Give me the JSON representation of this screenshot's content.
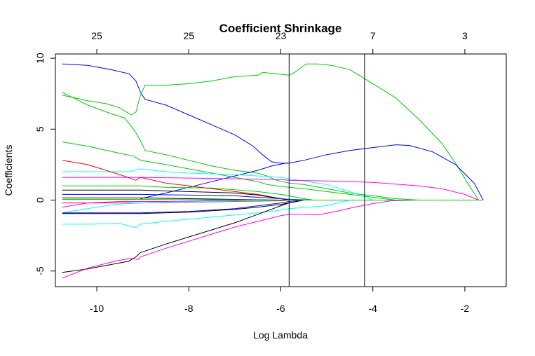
{
  "chart_data": {
    "type": "line",
    "title": "Coefficient Shrinkage",
    "xlabel": "Log Lambda",
    "ylabel": "Coefficients",
    "xlim": [
      -10.9,
      -1.1
    ],
    "ylim": [
      -6.1,
      10.3
    ],
    "xticks": [
      -10,
      -8,
      -6,
      -4,
      -2
    ],
    "xtick_labels": [
      "-10",
      "-8",
      "-6",
      "-4",
      "-2"
    ],
    "yticks": [
      -5,
      0,
      5,
      10
    ],
    "ytick_labels": [
      "-5",
      "0",
      "5",
      "10"
    ],
    "top_ticks": [
      -10,
      -8,
      -6,
      -4,
      -2
    ],
    "top_tick_labels": [
      "25",
      "25",
      "23",
      "7",
      "3"
    ],
    "vlines": [
      -5.82,
      -4.18
    ],
    "grid": false,
    "series": [
      {
        "color": "#0000ff",
        "x": [
          -10.75,
          -10.2,
          -9.7,
          -9.3,
          -9.15,
          -9.05,
          -8.95,
          -8.5,
          -8.0,
          -7.5,
          -7.0,
          -6.6,
          -6.4,
          -6.2,
          -6.0,
          -5.82
        ],
        "y": [
          9.6,
          9.5,
          9.2,
          8.9,
          8.4,
          7.6,
          7.1,
          6.7,
          6.0,
          5.3,
          4.6,
          3.8,
          3.2,
          2.7,
          2.6,
          2.6
        ]
      },
      {
        "color": "#00cd00",
        "x": [
          -10.75,
          -10.2,
          -9.8,
          -9.5,
          -9.25,
          -9.15,
          -9.05,
          -8.95,
          -8.5,
          -8.0,
          -7.5,
          -7.0,
          -6.5,
          -6.4,
          -6.1,
          -5.82,
          -5.7,
          -5.45,
          -5.2,
          -4.9,
          -4.5,
          -4.2,
          -3.5,
          -3.0,
          -2.5,
          -2.2,
          -1.9,
          -1.7
        ],
        "y": [
          7.4,
          7.0,
          6.8,
          6.5,
          6.0,
          6.2,
          7.4,
          8.1,
          8.1,
          8.2,
          8.4,
          8.7,
          8.8,
          9.0,
          8.9,
          8.8,
          9.0,
          9.6,
          9.6,
          9.5,
          9.2,
          8.6,
          7.2,
          5.7,
          4.0,
          2.6,
          1.0,
          0.0
        ]
      },
      {
        "color": "#00cd00",
        "x": [
          -10.75,
          -10.2,
          -9.7,
          -9.4,
          -9.2,
          -9.05,
          -8.95,
          -8.5,
          -8.0,
          -7.5,
          -7.0,
          -6.5,
          -6.3,
          -6.1,
          -5.82,
          -5.5,
          -5.0,
          -4.5,
          -4.0,
          -3.5,
          -3.0,
          -2.6
        ],
        "y": [
          7.6,
          6.7,
          6.1,
          5.8,
          5.0,
          4.2,
          3.5,
          3.2,
          2.8,
          2.4,
          2.1,
          1.9,
          1.7,
          1.4,
          1.2,
          1.1,
          0.8,
          0.5,
          0.3,
          0.1,
          0.0,
          0.0
        ]
      },
      {
        "color": "#00cd00",
        "x": [
          -10.75,
          -10.2,
          -9.5,
          -9.2,
          -9.05,
          -8.5,
          -8.0,
          -7.5,
          -7.0,
          -6.5,
          -6.3,
          -6.1,
          -5.82,
          -5.5,
          -5.0,
          -4.5,
          -4.0,
          -3.5
        ],
        "y": [
          4.1,
          3.8,
          3.3,
          3.1,
          2.8,
          2.5,
          2.2,
          1.9,
          1.6,
          1.3,
          1.1,
          1.0,
          0.9,
          0.8,
          0.6,
          0.4,
          0.2,
          0.0
        ]
      },
      {
        "color": "#0000ff",
        "x": [
          -9.05,
          -8.5,
          -8.0,
          -7.5,
          -7.0,
          -6.5,
          -6.2,
          -5.9,
          -5.82,
          -5.5,
          -5.0,
          -4.5,
          -4.0,
          -3.5,
          -3.2,
          -2.7,
          -2.2,
          -1.8,
          -1.6
        ],
        "y": [
          0.1,
          0.5,
          0.9,
          1.3,
          1.7,
          2.1,
          2.4,
          2.6,
          2.6,
          2.8,
          3.2,
          3.5,
          3.7,
          3.9,
          3.85,
          3.4,
          2.5,
          1.2,
          0.0
        ]
      },
      {
        "color": "#00ffff",
        "x": [
          -10.75,
          -9.3,
          -9.05,
          -8.5,
          -8.0,
          -7.0,
          -6.0,
          -5.82,
          -5.0,
          -4.5,
          -4.0
        ],
        "y": [
          2.0,
          2.0,
          2.2,
          2.0,
          1.9,
          1.8,
          1.6,
          1.5,
          1.1,
          0.6,
          0.0
        ]
      },
      {
        "color": "#00cd00",
        "x": [
          -10.75,
          -9.05,
          -8.5,
          -7.5,
          -6.5,
          -6.0,
          -5.82,
          -5.5,
          -5.3
        ],
        "y": [
          1.0,
          1.0,
          0.9,
          0.85,
          0.6,
          0.4,
          0.3,
          0.1,
          0.0
        ]
      },
      {
        "color": "#ff00ff",
        "x": [
          -10.75,
          -9.05,
          -8.0,
          -7.0,
          -6.0,
          -5.82,
          -5.0,
          -4.0,
          -3.0,
          -2.5,
          -2.0,
          -1.7
        ],
        "y": [
          1.6,
          1.6,
          1.55,
          1.5,
          1.45,
          1.4,
          1.35,
          1.25,
          1.0,
          0.8,
          0.4,
          0.0
        ]
      },
      {
        "color": "#ff0000",
        "x": [
          -10.75,
          -10.2,
          -9.5,
          -9.15,
          -9.05,
          -8.5,
          -7.5,
          -7.0,
          -6.5,
          -6.0,
          -5.82
        ],
        "y": [
          2.8,
          2.5,
          1.8,
          1.4,
          1.6,
          1.2,
          0.8,
          0.6,
          0.4,
          0.1,
          0.0
        ]
      },
      {
        "color": "#000000",
        "x": [
          -10.75,
          -9.05,
          -8.0,
          -7.0,
          -6.5,
          -6.0,
          -5.82
        ],
        "y": [
          0.7,
          0.7,
          0.6,
          0.5,
          0.35,
          0.1,
          0.0
        ]
      },
      {
        "color": "#0000ff",
        "x": [
          -10.75,
          -9.05,
          -8.0,
          -7.0,
          -6.5,
          -6.0,
          -5.82,
          -5.3
        ],
        "y": [
          0.4,
          0.4,
          0.35,
          0.3,
          0.2,
          0.1,
          0.05,
          0.0
        ]
      },
      {
        "color": "#ff0000",
        "x": [
          -10.75,
          -9.05,
          -8.0,
          -7.0,
          -6.0,
          -5.82,
          -5.5
        ],
        "y": [
          -0.2,
          -0.2,
          -0.15,
          -0.1,
          -0.05,
          0.0,
          0.0
        ]
      },
      {
        "color": "#ff00ff",
        "x": [
          -10.75,
          -10.2,
          -9.5,
          -9.05,
          -8.5,
          -7.5,
          -6.5,
          -6.0,
          -5.82
        ],
        "y": [
          -0.5,
          -0.2,
          -0.1,
          -0.1,
          -0.1,
          -0.05,
          0.0,
          0.0,
          0.0
        ]
      },
      {
        "color": "#00ffff",
        "x": [
          -10.75,
          -10.2,
          -9.6,
          -9.05,
          -8.5,
          -7.5,
          -6.5,
          -6.0,
          -5.82
        ],
        "y": [
          -0.9,
          -0.6,
          -0.3,
          -0.2,
          -0.15,
          -0.1,
          -0.05,
          0.0,
          0.0
        ]
      },
      {
        "color": "#000000",
        "x": [
          -10.75,
          -9.05,
          -8.0,
          -7.0,
          -6.5,
          -6.0,
          -5.82,
          -5.5
        ],
        "y": [
          -0.95,
          -0.95,
          -0.85,
          -0.65,
          -0.5,
          -0.3,
          -0.2,
          0.0
        ]
      },
      {
        "color": "#0000ff",
        "x": [
          -10.75,
          -9.05,
          -8.0,
          -7.0,
          -6.5,
          -6.0,
          -5.82,
          -5.5
        ],
        "y": [
          -0.9,
          -0.9,
          -0.8,
          -0.6,
          -0.4,
          -0.2,
          -0.1,
          0.0
        ]
      },
      {
        "color": "#00ffff",
        "x": [
          -10.75,
          -10.2,
          -9.5,
          -9.15,
          -9.05,
          -8.5,
          -7.5,
          -6.5,
          -6.0,
          -5.82,
          -5.0,
          -4.5
        ],
        "y": [
          -1.7,
          -1.7,
          -1.65,
          -1.95,
          -1.7,
          -1.5,
          -1.2,
          -0.9,
          -0.7,
          -0.6,
          -0.4,
          0.0
        ]
      },
      {
        "color": "#000000",
        "x": [
          -10.75,
          -10.2,
          -9.7,
          -9.3,
          -9.15,
          -9.05,
          -8.5,
          -8.0,
          -7.5,
          -7.0,
          -6.5,
          -6.0,
          -5.82,
          -5.5,
          -5.2
        ],
        "y": [
          -5.1,
          -4.85,
          -4.55,
          -4.3,
          -4.0,
          -3.7,
          -3.1,
          -2.6,
          -2.1,
          -1.6,
          -1.0,
          -0.4,
          -0.2,
          0.0,
          0.0
        ]
      },
      {
        "color": "#ff00ff",
        "x": [
          -10.75,
          -10.2,
          -9.6,
          -9.25,
          -9.1,
          -9.05,
          -8.5,
          -8.0,
          -7.5,
          -7.0,
          -6.5,
          -6.0,
          -5.82,
          -5.5,
          -5.2,
          -4.8,
          -4.4,
          -4.0,
          -3.6,
          -3.0
        ],
        "y": [
          -5.5,
          -4.8,
          -4.3,
          -4.1,
          -4.2,
          -4.0,
          -3.4,
          -2.9,
          -2.4,
          -1.9,
          -1.5,
          -1.1,
          -1.0,
          -1.0,
          -1.05,
          -0.8,
          -0.5,
          -0.25,
          -0.05,
          0.0
        ]
      },
      {
        "color": "#000000",
        "x": [
          -10.75,
          -9.05,
          -8.0,
          -7.0,
          -6.0,
          -5.82,
          -5.5
        ],
        "y": [
          0.15,
          0.15,
          0.1,
          0.05,
          0.0,
          0.0,
          0.0
        ]
      },
      {
        "color": "#00cd00",
        "x": [
          -10.75,
          -9.05,
          -8.0,
          -7.0,
          -6.0,
          -5.82
        ],
        "y": [
          0.05,
          0.05,
          0.03,
          0.02,
          0.0,
          0.0
        ]
      },
      {
        "color": "#00cd00",
        "x": [
          -5.82,
          -4.0,
          -2.0,
          -1.6
        ],
        "y": [
          0.0,
          0.0,
          0.0,
          0.0
        ]
      }
    ]
  }
}
